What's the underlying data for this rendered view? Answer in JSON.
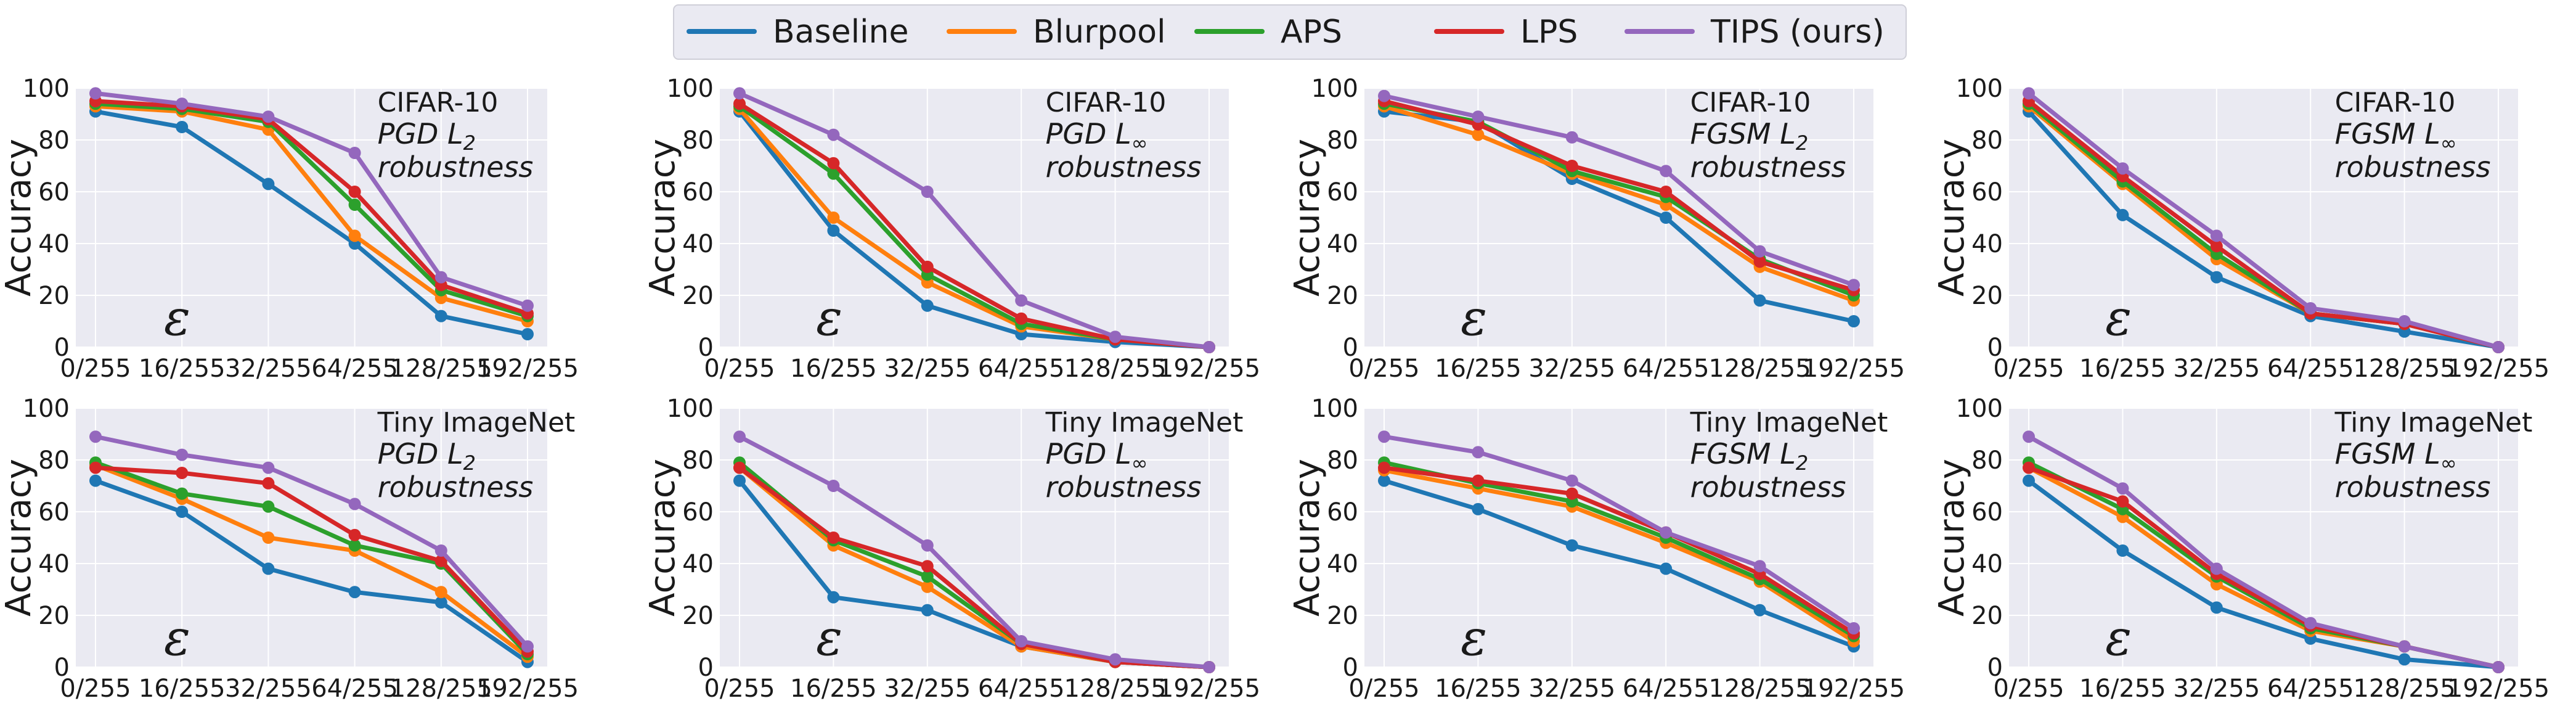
{
  "legend": {
    "series": [
      {
        "name": "Baseline",
        "color": "#1f77b4"
      },
      {
        "name": "Blurpool",
        "color": "#ff7f0e"
      },
      {
        "name": "APS",
        "color": "#2ca02c"
      },
      {
        "name": "LPS",
        "color": "#d62728"
      },
      {
        "name": "TIPS (ours)",
        "color": "#9467bd"
      }
    ]
  },
  "chart_data": [
    {
      "type": "line",
      "dataset": "CIFAR-10",
      "attack": "PGD",
      "norm": "2",
      "subtitle": "robustness",
      "xlabel": "ε",
      "ylabel": "Accuracy",
      "ylim": [
        0,
        100
      ],
      "categories": [
        "0/255",
        "16/255",
        "32/255",
        "64/255",
        "128/255",
        "192/255"
      ],
      "yticks": [
        0,
        20,
        40,
        60,
        80,
        100
      ],
      "series": [
        {
          "name": "Baseline",
          "values": [
            91,
            85,
            63,
            40,
            12,
            5
          ]
        },
        {
          "name": "Blurpool",
          "values": [
            93,
            91,
            84,
            43,
            19,
            10
          ]
        },
        {
          "name": "APS",
          "values": [
            94,
            92,
            87,
            55,
            22,
            12
          ]
        },
        {
          "name": "LPS",
          "values": [
            95,
            93,
            88,
            60,
            24,
            13
          ]
        },
        {
          "name": "TIPS (ours)",
          "values": [
            98,
            94,
            89,
            75,
            27,
            16
          ]
        }
      ]
    },
    {
      "type": "line",
      "dataset": "CIFAR-10",
      "attack": "PGD",
      "norm": "∞",
      "subtitle": "robustness",
      "xlabel": "ε",
      "ylabel": "Accuracy",
      "ylim": [
        0,
        100
      ],
      "categories": [
        "0/255",
        "16/255",
        "32/255",
        "64/255",
        "128/255",
        "192/255"
      ],
      "yticks": [
        0,
        20,
        40,
        60,
        80,
        100
      ],
      "series": [
        {
          "name": "Baseline",
          "values": [
            91,
            45,
            16,
            5,
            2,
            0
          ]
        },
        {
          "name": "Blurpool",
          "values": [
            92,
            50,
            25,
            8,
            3,
            0
          ]
        },
        {
          "name": "APS",
          "values": [
            93,
            67,
            28,
            9,
            3,
            0
          ]
        },
        {
          "name": "LPS",
          "values": [
            94,
            71,
            31,
            11,
            3,
            0
          ]
        },
        {
          "name": "TIPS (ours)",
          "values": [
            98,
            82,
            60,
            18,
            4,
            0
          ]
        }
      ]
    },
    {
      "type": "line",
      "dataset": "CIFAR-10",
      "attack": "FGSM",
      "norm": "2",
      "subtitle": "robustness",
      "xlabel": "ε",
      "ylabel": "Accuracy",
      "ylim": [
        0,
        100
      ],
      "categories": [
        "0/255",
        "16/255",
        "32/255",
        "64/255",
        "128/255",
        "192/255"
      ],
      "yticks": [
        0,
        20,
        40,
        60,
        80,
        100
      ],
      "series": [
        {
          "name": "Baseline",
          "values": [
            91,
            87,
            65,
            50,
            18,
            10
          ]
        },
        {
          "name": "Blurpool",
          "values": [
            93,
            82,
            67,
            55,
            31,
            18
          ]
        },
        {
          "name": "APS",
          "values": [
            94,
            87,
            68,
            58,
            34,
            20
          ]
        },
        {
          "name": "LPS",
          "values": [
            95,
            86,
            70,
            60,
            33,
            22
          ]
        },
        {
          "name": "TIPS (ours)",
          "values": [
            97,
            89,
            81,
            68,
            37,
            24
          ]
        }
      ]
    },
    {
      "type": "line",
      "dataset": "CIFAR-10",
      "attack": "FGSM",
      "norm": "∞",
      "subtitle": "robustness",
      "xlabel": "ε",
      "ylabel": "Accuracy",
      "ylim": [
        0,
        100
      ],
      "categories": [
        "0/255",
        "16/255",
        "32/255",
        "64/255",
        "128/255",
        "192/255"
      ],
      "yticks": [
        0,
        20,
        40,
        60,
        80,
        100
      ],
      "series": [
        {
          "name": "Baseline",
          "values": [
            91,
            51,
            27,
            12,
            6,
            0
          ]
        },
        {
          "name": "Blurpool",
          "values": [
            93,
            63,
            34,
            13,
            9,
            0
          ]
        },
        {
          "name": "APS",
          "values": [
            94,
            64,
            36,
            13,
            9,
            0
          ]
        },
        {
          "name": "LPS",
          "values": [
            95,
            66,
            39,
            13,
            9,
            0
          ]
        },
        {
          "name": "TIPS (ours)",
          "values": [
            98,
            69,
            43,
            15,
            10,
            0
          ]
        }
      ]
    },
    {
      "type": "line",
      "dataset": "Tiny ImageNet",
      "attack": "PGD",
      "norm": "2",
      "subtitle": "robustness",
      "xlabel": "ε",
      "ylabel": "Accuracy",
      "ylim": [
        0,
        100
      ],
      "categories": [
        "0/255",
        "16/255",
        "32/255",
        "64/255",
        "128/255",
        "192/255"
      ],
      "yticks": [
        0,
        20,
        40,
        60,
        80,
        100
      ],
      "series": [
        {
          "name": "Baseline",
          "values": [
            72,
            60,
            38,
            29,
            25,
            2
          ]
        },
        {
          "name": "Blurpool",
          "values": [
            78,
            65,
            50,
            45,
            29,
            4
          ]
        },
        {
          "name": "APS",
          "values": [
            79,
            67,
            62,
            47,
            40,
            5
          ]
        },
        {
          "name": "LPS",
          "values": [
            77,
            75,
            71,
            51,
            41,
            6
          ]
        },
        {
          "name": "TIPS (ours)",
          "values": [
            89,
            82,
            77,
            63,
            45,
            8
          ]
        }
      ]
    },
    {
      "type": "line",
      "dataset": "Tiny ImageNet",
      "attack": "PGD",
      "norm": "∞",
      "subtitle": "robustness",
      "xlabel": "ε",
      "ylabel": "Accuracy",
      "ylim": [
        0,
        100
      ],
      "categories": [
        "0/255",
        "16/255",
        "32/255",
        "64/255",
        "128/255",
        "192/255"
      ],
      "yticks": [
        0,
        20,
        40,
        60,
        80,
        100
      ],
      "series": [
        {
          "name": "Baseline",
          "values": [
            72,
            27,
            22,
            8,
            2,
            0
          ]
        },
        {
          "name": "Blurpool",
          "values": [
            77,
            47,
            31,
            8,
            2,
            0
          ]
        },
        {
          "name": "APS",
          "values": [
            79,
            49,
            35,
            9,
            2,
            0
          ]
        },
        {
          "name": "LPS",
          "values": [
            77,
            50,
            39,
            9,
            2,
            0
          ]
        },
        {
          "name": "TIPS (ours)",
          "values": [
            89,
            70,
            47,
            10,
            3,
            0
          ]
        }
      ]
    },
    {
      "type": "line",
      "dataset": "Tiny ImageNet",
      "attack": "FGSM",
      "norm": "2",
      "subtitle": "robustness",
      "xlabel": "ε",
      "ylabel": "Accuracy",
      "ylim": [
        0,
        100
      ],
      "categories": [
        "0/255",
        "16/255",
        "32/255",
        "64/255",
        "128/255",
        "192/255"
      ],
      "yticks": [
        0,
        20,
        40,
        60,
        80,
        100
      ],
      "series": [
        {
          "name": "Baseline",
          "values": [
            72,
            61,
            47,
            38,
            22,
            8
          ]
        },
        {
          "name": "Blurpool",
          "values": [
            76,
            69,
            62,
            48,
            33,
            10
          ]
        },
        {
          "name": "APS",
          "values": [
            79,
            71,
            64,
            50,
            34,
            12
          ]
        },
        {
          "name": "LPS",
          "values": [
            77,
            72,
            67,
            52,
            36,
            13
          ]
        },
        {
          "name": "TIPS (ours)",
          "values": [
            89,
            83,
            72,
            52,
            39,
            15
          ]
        }
      ]
    },
    {
      "type": "line",
      "dataset": "Tiny ImageNet",
      "attack": "FGSM",
      "norm": "∞",
      "subtitle": "robustness",
      "xlabel": "ε",
      "ylabel": "Accuracy",
      "ylim": [
        0,
        100
      ],
      "categories": [
        "0/255",
        "16/255",
        "32/255",
        "64/255",
        "128/255",
        "192/255"
      ],
      "yticks": [
        0,
        20,
        40,
        60,
        80,
        100
      ],
      "series": [
        {
          "name": "Baseline",
          "values": [
            72,
            45,
            23,
            11,
            3,
            0
          ]
        },
        {
          "name": "Blurpool",
          "values": [
            77,
            58,
            32,
            14,
            8,
            0
          ]
        },
        {
          "name": "APS",
          "values": [
            79,
            61,
            35,
            15,
            8,
            0
          ]
        },
        {
          "name": "LPS",
          "values": [
            77,
            64,
            36,
            16,
            8,
            0
          ]
        },
        {
          "name": "TIPS (ours)",
          "values": [
            89,
            69,
            38,
            17,
            8,
            0
          ]
        }
      ]
    }
  ]
}
